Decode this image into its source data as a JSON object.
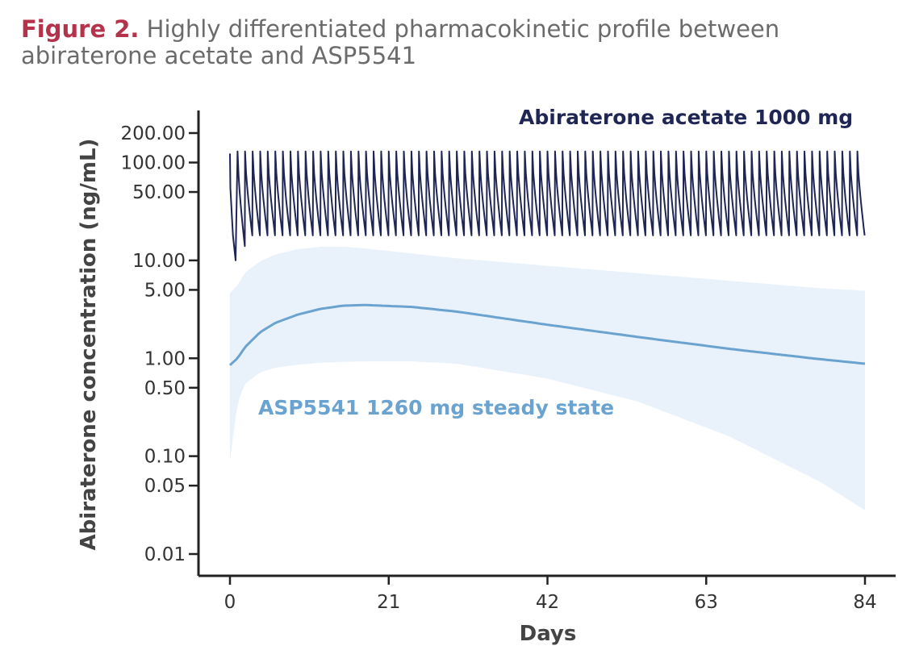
{
  "caption": {
    "label": "Figure 2.",
    "text": "Highly differentiated pharmacokinetic profile between abiraterone acetate and ASP5541"
  },
  "chart_data": {
    "type": "line",
    "title": "",
    "xlabel": "Days",
    "ylabel": "Abiraterone concentration (ng/mL)",
    "xlim": [
      0,
      84
    ],
    "ylim": [
      0.01,
      200
    ],
    "yscale": "log",
    "x_ticks": [
      0,
      21,
      42,
      63,
      84
    ],
    "x_tick_labels": [
      "0",
      "21",
      "42",
      "63",
      "84"
    ],
    "y_ticks": [
      0.01,
      0.05,
      0.1,
      0.5,
      1,
      5,
      10,
      50,
      100,
      200
    ],
    "y_tick_labels": [
      "0.01",
      "0.05",
      "0.10",
      "0.50",
      "1.00",
      "5.00",
      "10.00",
      "50.00",
      "100.00",
      "200.00"
    ],
    "grid": false,
    "legend": "none",
    "series": [
      {
        "name": "Abiraterone acetate 1000 mg",
        "color": "#1f2654",
        "style": "once-daily oscillation",
        "dosing_interval_days": 1,
        "first_trough": {
          "x": 1,
          "y": 10
        },
        "peak": 130,
        "trough": 18,
        "x_end": 84
      },
      {
        "name": "ASP5541 1260 mg steady state",
        "color": "#6aa3cf",
        "band_color": "#e9f2fa",
        "x": [
          0,
          1,
          2,
          4,
          6,
          9,
          12,
          15,
          18,
          24,
          30,
          42,
          54,
          66,
          78,
          84
        ],
        "y": [
          0.85,
          1.0,
          1.3,
          1.85,
          2.3,
          2.8,
          3.2,
          3.45,
          3.5,
          3.35,
          3.0,
          2.2,
          1.65,
          1.25,
          0.98,
          0.88
        ],
        "lower": [
          0.09,
          0.35,
          0.55,
          0.72,
          0.8,
          0.86,
          0.9,
          0.92,
          0.93,
          0.93,
          0.88,
          0.62,
          0.36,
          0.16,
          0.055,
          0.028
        ],
        "upper": [
          4.6,
          5.6,
          7.5,
          9.8,
          11.5,
          13.0,
          13.8,
          13.8,
          13.2,
          11.8,
          10.5,
          8.8,
          7.4,
          6.2,
          5.2,
          4.9
        ]
      }
    ]
  }
}
